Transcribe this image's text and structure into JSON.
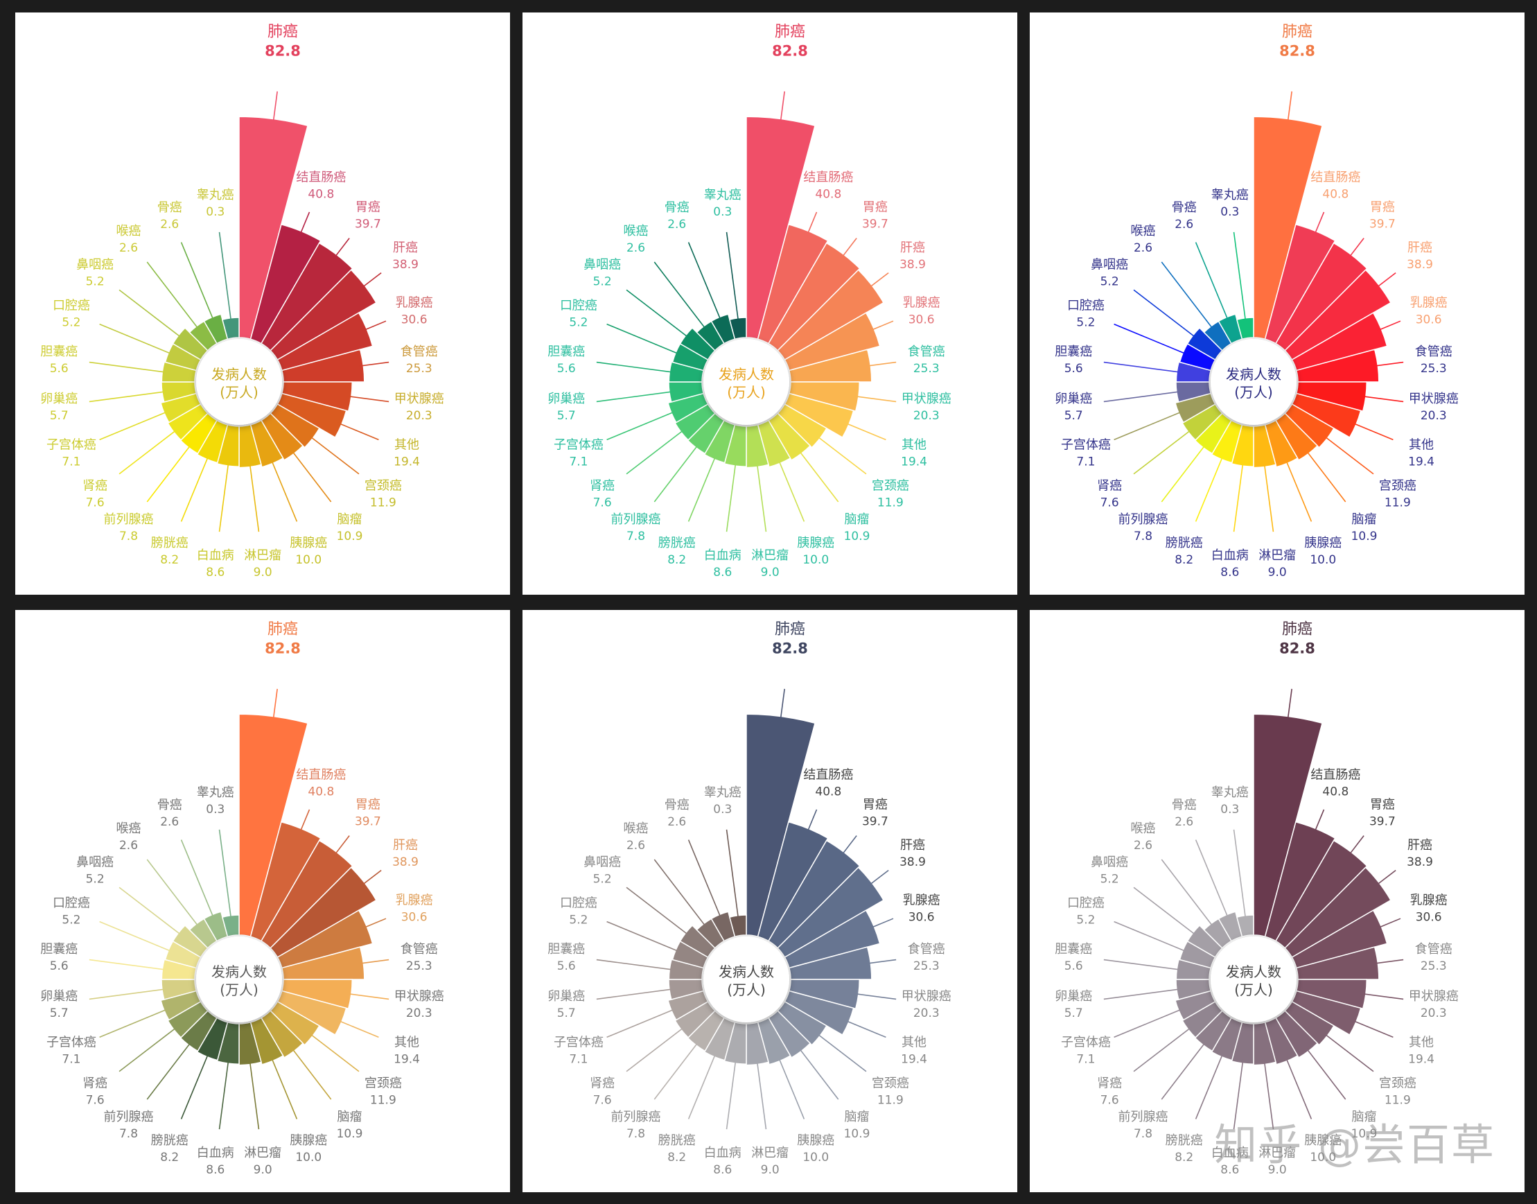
{
  "watermark": "知乎 @尝百草",
  "colors": {
    "background": "#1c1c1c",
    "panel": "#ffffff"
  },
  "chart_data": [
    {
      "type": "polar-bar",
      "center_text": [
        "发病人数",
        "(万人)"
      ],
      "categories": [
        "肺癌",
        "结直肠癌",
        "胃癌",
        "肝癌",
        "乳腺癌",
        "食管癌",
        "甲状腺癌",
        "其他",
        "宫颈癌",
        "脑瘤",
        "胰腺癌",
        "淋巴瘤",
        "白血病",
        "膀胱癌",
        "前列腺癌",
        "肾癌",
        "子宫体癌",
        "卵巢癌",
        "胆囊癌",
        "口腔癌",
        "鼻咽癌",
        "喉癌",
        "骨癌",
        "睾丸癌"
      ],
      "values": [
        82.8,
        40.8,
        39.7,
        38.9,
        30.6,
        25.3,
        20.3,
        19.4,
        11.9,
        10.9,
        10.0,
        9.0,
        8.6,
        8.2,
        7.8,
        7.6,
        7.1,
        5.7,
        5.6,
        5.2,
        5.2,
        2.6,
        2.6,
        0.3
      ],
      "value_labels": [
        "82.8",
        "40.8",
        "39.7",
        "38.9",
        "30.6",
        "25.3",
        "20.3",
        "19.4",
        "11.9",
        "10.9",
        "10.0",
        "9.0",
        "8.6",
        "8.2",
        "7.8",
        "7.6",
        "7.1",
        "5.7",
        "5.6",
        "5.2",
        "5.2",
        "2.6",
        "2.6",
        "0.3"
      ],
      "colors": [
        "#f0516a",
        "#b42144",
        "#b8273c",
        "#bf2e35",
        "#c8362f",
        "#cf3d2a",
        "#d54a25",
        "#da5b20",
        "#df731b",
        "#e48b17",
        "#e6a313",
        "#e9b90f",
        "#ecc90b",
        "#f3db07",
        "#fae800",
        "#eee41c",
        "#e2dd2a",
        "#d9d82f",
        "#cdd13a",
        "#c2cb40",
        "#afc544",
        "#8cbc45",
        "#6aaf44",
        "#43967a"
      ],
      "label_colors": [
        "#e3415d",
        "#cf5a7a",
        "#d15a76",
        "#d25f73",
        "#d26a6c",
        "#cc9a3c",
        "#c7ad2b",
        "#c4b62a",
        "#c4bc2a",
        "#c5c02b",
        "#c6c22b",
        "#c7c52c",
        "#c8c82c",
        "#c9ca2d",
        "#cacb2e",
        "#cbcc2f",
        "#cccc30",
        "#cdcc31",
        "#cdcc31",
        "#cdcc31",
        "#cccb32",
        "#cbc934",
        "#c9c735",
        "#c8c637"
      ],
      "name_color": "#e3415d",
      "value_color": "#e3415d",
      "center_color": "#c8a820"
    },
    {
      "type": "polar-bar",
      "center_text": [
        "发病人数",
        "(万人)"
      ],
      "categories": [
        "肺癌",
        "结直肠癌",
        "胃癌",
        "肝癌",
        "乳腺癌",
        "食管癌",
        "甲状腺癌",
        "其他",
        "宫颈癌",
        "脑瘤",
        "胰腺癌",
        "淋巴瘤",
        "白血病",
        "膀胱癌",
        "前列腺癌",
        "肾癌",
        "子宫体癌",
        "卵巢癌",
        "胆囊癌",
        "口腔癌",
        "鼻咽癌",
        "喉癌",
        "骨癌",
        "睾丸癌"
      ],
      "values": [
        82.8,
        40.8,
        39.7,
        38.9,
        30.6,
        25.3,
        20.3,
        19.4,
        11.9,
        10.9,
        10.0,
        9.0,
        8.6,
        8.2,
        7.8,
        7.6,
        7.1,
        5.7,
        5.6,
        5.2,
        5.2,
        2.6,
        2.6,
        0.3
      ],
      "value_labels": [
        "82.8",
        "40.8",
        "39.7",
        "38.9",
        "30.6",
        "25.3",
        "20.3",
        "19.4",
        "11.9",
        "10.9",
        "10.0",
        "9.0",
        "8.6",
        "8.2",
        "7.8",
        "7.6",
        "7.1",
        "5.7",
        "5.6",
        "5.2",
        "5.2",
        "2.6",
        "2.6",
        "0.3"
      ],
      "colors": [
        "#f04f68",
        "#f1675e",
        "#f37559",
        "#f58456",
        "#f69453",
        "#f8a651",
        "#fab64f",
        "#fcc74d",
        "#f7d748",
        "#e7e045",
        "#cfe14f",
        "#b3df57",
        "#98db5d",
        "#80d664",
        "#66d16c",
        "#4fcc72",
        "#3bc677",
        "#2bbd77",
        "#1eaf73",
        "#17a06c",
        "#0f8f65",
        "#0d7e5d",
        "#0c6b57",
        "#0f5a52"
      ],
      "label_colors": [
        "#e3415d",
        "#e26a76",
        "#e27076",
        "#e27278",
        "#e27479",
        "#2ebfa0",
        "#2ebfa0",
        "#2ebfa0",
        "#2ebfa0",
        "#2ebfa0",
        "#2ebfa0",
        "#2ebfa0",
        "#2ebfa0",
        "#2ebfa0",
        "#2ebfa0",
        "#2ebfa0",
        "#2ebfa0",
        "#2ebfa0",
        "#2ebfa0",
        "#2ebfa0",
        "#2ebfa0",
        "#2ebfa0",
        "#2ebfa0",
        "#2ebfa0"
      ],
      "name_color": "#e3415d",
      "value_color": "#e3415d",
      "center_color": "#e8a21c"
    },
    {
      "type": "polar-bar",
      "center_text": [
        "发病人数",
        "(万人)"
      ],
      "categories": [
        "肺癌",
        "结直肠癌",
        "胃癌",
        "肝癌",
        "乳腺癌",
        "食管癌",
        "甲状腺癌",
        "其他",
        "宫颈癌",
        "脑瘤",
        "胰腺癌",
        "淋巴瘤",
        "白血病",
        "膀胱癌",
        "前列腺癌",
        "肾癌",
        "子宫体癌",
        "卵巢癌",
        "胆囊癌",
        "口腔癌",
        "鼻咽癌",
        "喉癌",
        "骨癌",
        "睾丸癌"
      ],
      "values": [
        82.8,
        40.8,
        39.7,
        38.9,
        30.6,
        25.3,
        20.3,
        19.4,
        11.9,
        10.9,
        10.0,
        9.0,
        8.6,
        8.2,
        7.8,
        7.6,
        7.1,
        5.7,
        5.6,
        5.2,
        5.2,
        2.6,
        2.6,
        0.3
      ],
      "value_labels": [
        "82.8",
        "40.8",
        "39.7",
        "38.9",
        "30.6",
        "25.3",
        "20.3",
        "19.4",
        "11.9",
        "10.9",
        "10.0",
        "9.0",
        "8.6",
        "8.2",
        "7.8",
        "7.6",
        "7.1",
        "5.7",
        "5.6",
        "5.2",
        "5.2",
        "2.6",
        "2.6",
        "0.3"
      ],
      "colors": [
        "#ff7040",
        "#f03c55",
        "#f3334a",
        "#f72b3f",
        "#fa2234",
        "#fd1a26",
        "#fc1a1a",
        "#fc3a1a",
        "#fd5a19",
        "#fd7a17",
        "#fe9a15",
        "#feb912",
        "#ffd710",
        "#fcef10",
        "#e8f21a",
        "#c2d23a",
        "#9d9c5c",
        "#6a6aa0",
        "#4040e0",
        "#0a0aff",
        "#0d3ad9",
        "#0f6fbf",
        "#0da38f",
        "#13c27a"
      ],
      "label_colors": [
        "#ff8040",
        "#f8a070",
        "#f8a070",
        "#f8a070",
        "#f8a070",
        "#33338a",
        "#33338a",
        "#33338a",
        "#33338a",
        "#33338a",
        "#33338a",
        "#33338a",
        "#33338a",
        "#33338a",
        "#33338a",
        "#33338a",
        "#33338a",
        "#33338a",
        "#33338a",
        "#33338a",
        "#33338a",
        "#33338a",
        "#33338a",
        "#33338a"
      ],
      "name_color": "#f07a45",
      "value_color": "#f07a45",
      "center_color": "#2a2a80"
    },
    {
      "type": "polar-bar",
      "center_text": [
        "发病人数",
        "(万人)"
      ],
      "categories": [
        "肺癌",
        "结直肠癌",
        "胃癌",
        "肝癌",
        "乳腺癌",
        "食管癌",
        "甲状腺癌",
        "其他",
        "宫颈癌",
        "脑瘤",
        "胰腺癌",
        "淋巴瘤",
        "白血病",
        "膀胱癌",
        "前列腺癌",
        "肾癌",
        "子宫体癌",
        "卵巢癌",
        "胆囊癌",
        "口腔癌",
        "鼻咽癌",
        "喉癌",
        "骨癌",
        "睾丸癌"
      ],
      "values": [
        82.8,
        40.8,
        39.7,
        38.9,
        30.6,
        25.3,
        20.3,
        19.4,
        11.9,
        10.9,
        10.0,
        9.0,
        8.6,
        8.2,
        7.8,
        7.6,
        7.1,
        5.7,
        5.6,
        5.2,
        5.2,
        2.6,
        2.6,
        0.3
      ],
      "value_labels": [
        "82.8",
        "40.8",
        "39.7",
        "38.9",
        "30.6",
        "25.3",
        "20.3",
        "19.4",
        "11.9",
        "10.9",
        "10.0",
        "9.0",
        "8.6",
        "8.2",
        "7.8",
        "7.6",
        "7.1",
        "5.7",
        "5.6",
        "5.2",
        "5.2",
        "2.6",
        "2.6",
        "0.3"
      ],
      "colors": [
        "#ff7440",
        "#d4643a",
        "#c85d37",
        "#b75734",
        "#cd7b40",
        "#e69a4c",
        "#f4ae55",
        "#f0b660",
        "#ddb24c",
        "#c4a63e",
        "#a49533",
        "#7a7a38",
        "#4b6640",
        "#3b5838",
        "#6b7c48",
        "#8c9a5a",
        "#b0b46c",
        "#d6cf84",
        "#f5e790",
        "#ece294",
        "#d8d68f",
        "#b8c88e",
        "#9cbd88",
        "#7ab088"
      ],
      "label_colors": [
        "#ff7440",
        "#e08060",
        "#e08a5f",
        "#e0965c",
        "#e0a05c",
        "#777777",
        "#777777",
        "#777777",
        "#777777",
        "#777777",
        "#777777",
        "#777777",
        "#777777",
        "#777777",
        "#777777",
        "#777777",
        "#777777",
        "#777777",
        "#777777",
        "#777777",
        "#777777",
        "#777777",
        "#777777",
        "#777777"
      ],
      "name_color": "#f07a45",
      "value_color": "#f07a45",
      "center_color": "#555555"
    },
    {
      "type": "polar-bar",
      "center_text": [
        "发病人数",
        "(万人)"
      ],
      "categories": [
        "肺癌",
        "结直肠癌",
        "胃癌",
        "肝癌",
        "乳腺癌",
        "食管癌",
        "甲状腺癌",
        "其他",
        "宫颈癌",
        "脑瘤",
        "胰腺癌",
        "淋巴瘤",
        "白血病",
        "膀胱癌",
        "前列腺癌",
        "肾癌",
        "子宫体癌",
        "卵巢癌",
        "胆囊癌",
        "口腔癌",
        "鼻咽癌",
        "喉癌",
        "骨癌",
        "睾丸癌"
      ],
      "values": [
        82.8,
        40.8,
        39.7,
        38.9,
        30.6,
        25.3,
        20.3,
        19.4,
        11.9,
        10.9,
        10.0,
        9.0,
        8.6,
        8.2,
        7.8,
        7.6,
        7.1,
        5.7,
        5.6,
        5.2,
        5.2,
        2.6,
        2.6,
        0.3
      ],
      "value_labels": [
        "82.8",
        "40.8",
        "39.7",
        "38.9",
        "30.6",
        "25.3",
        "20.3",
        "19.4",
        "11.9",
        "10.9",
        "10.0",
        "9.0",
        "8.6",
        "8.2",
        "7.8",
        "7.6",
        "7.1",
        "5.7",
        "5.6",
        "5.2",
        "5.2",
        "2.6",
        "2.6",
        "0.3"
      ],
      "colors": [
        "#4b5674",
        "#52607e",
        "#596886",
        "#606f8c",
        "#677591",
        "#6e7b95",
        "#768199",
        "#7e889d",
        "#8790a2",
        "#9198a7",
        "#9aa0ab",
        "#a4a6ae",
        "#acacb0",
        "#b3b0b0",
        "#b8b2ae",
        "#b2aaa6",
        "#aca29e",
        "#a49896",
        "#9c8f8c",
        "#948683",
        "#8b7c78",
        "#82726d",
        "#786763",
        "#6d5a54"
      ],
      "label_colors": [
        "#3e4560",
        "#444444",
        "#444444",
        "#444444",
        "#444444",
        "#888888",
        "#888888",
        "#888888",
        "#888888",
        "#888888",
        "#888888",
        "#888888",
        "#888888",
        "#888888",
        "#888888",
        "#888888",
        "#888888",
        "#888888",
        "#888888",
        "#888888",
        "#888888",
        "#888888",
        "#888888",
        "#888888"
      ],
      "name_color": "#3e4560",
      "value_color": "#3e4560",
      "center_color": "#444444"
    },
    {
      "type": "polar-bar",
      "center_text": [
        "发病人数",
        "(万人)"
      ],
      "categories": [
        "肺癌",
        "结直肠癌",
        "胃癌",
        "肝癌",
        "乳腺癌",
        "食管癌",
        "甲状腺癌",
        "其他",
        "宫颈癌",
        "脑瘤",
        "胰腺癌",
        "淋巴瘤",
        "白血病",
        "膀胱癌",
        "前列腺癌",
        "肾癌",
        "子宫体癌",
        "卵巢癌",
        "胆囊癌",
        "口腔癌",
        "鼻咽癌",
        "喉癌",
        "骨癌",
        "睾丸癌"
      ],
      "values": [
        82.8,
        40.8,
        39.7,
        38.9,
        30.6,
        25.3,
        20.3,
        19.4,
        11.9,
        10.9,
        10.0,
        9.0,
        8.6,
        8.2,
        7.8,
        7.6,
        7.1,
        5.7,
        5.6,
        5.2,
        5.2,
        2.6,
        2.6,
        0.3
      ],
      "value_labels": [
        "82.8",
        "40.8",
        "39.7",
        "38.9",
        "30.6",
        "25.3",
        "20.3",
        "19.4",
        "11.9",
        "10.9",
        "10.0",
        "9.0",
        "8.6",
        "8.2",
        "7.8",
        "7.6",
        "7.1",
        "5.7",
        "5.6",
        "5.2",
        "5.2",
        "2.6",
        "2.6",
        "0.3"
      ],
      "colors": [
        "#693a4e",
        "#6d4053",
        "#714658",
        "#744b5c",
        "#774f60",
        "#7a5464",
        "#7c5869",
        "#7e5d6d",
        "#7f6271",
        "#816676",
        "#836b7a",
        "#86707e",
        "#887583",
        "#8b7a87",
        "#8e7f8b",
        "#918590",
        "#958a95",
        "#988f99",
        "#9c959e",
        "#a09aa2",
        "#a49fa6",
        "#a8a4aa",
        "#aca9ae",
        "#b0aeb2"
      ],
      "label_colors": [
        "#4e3444",
        "#444444",
        "#444444",
        "#444444",
        "#444444",
        "#888888",
        "#888888",
        "#888888",
        "#888888",
        "#888888",
        "#888888",
        "#888888",
        "#888888",
        "#888888",
        "#888888",
        "#888888",
        "#888888",
        "#888888",
        "#888888",
        "#888888",
        "#888888",
        "#888888",
        "#888888",
        "#888888"
      ],
      "name_color": "#4e3444",
      "value_color": "#4e3444",
      "center_color": "#444444"
    }
  ]
}
